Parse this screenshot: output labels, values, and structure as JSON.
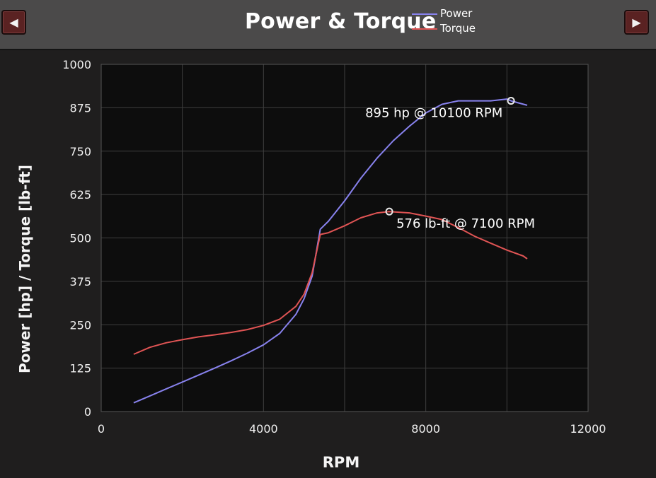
{
  "header": {
    "prev_icon": "◀",
    "next_icon": "▶"
  },
  "colors": {
    "power": "#8882ee",
    "torque": "#e05454",
    "plot_bg": "#0d0d0d",
    "grid": "#3e3e3e"
  },
  "chart_data": {
    "type": "line",
    "title": "Power & Torque",
    "xlabel": "RPM",
    "ylabel": "Power [hp] / Torque [lb-ft]",
    "xlim": [
      0,
      12000
    ],
    "ylim": [
      0,
      1000
    ],
    "xticks": [
      0,
      4000,
      8000,
      12000
    ],
    "xtick_labels": [
      "0",
      "4000",
      "8000",
      "12000"
    ],
    "yticks": [
      0,
      125,
      250,
      375,
      500,
      625,
      750,
      875,
      1000
    ],
    "ytick_labels": [
      "0",
      "125",
      "250",
      "375",
      "500",
      "625",
      "750",
      "875",
      "1000"
    ],
    "grid": true,
    "legend": "top (next to title)",
    "series": [
      {
        "name": "Power",
        "x": [
          800,
          1200,
          1600,
          2000,
          2400,
          2800,
          3200,
          3600,
          4000,
          4400,
          4800,
          5000,
          5200,
          5400,
          5600,
          6000,
          6400,
          6800,
          7200,
          7600,
          8000,
          8400,
          8800,
          9200,
          9600,
          10000,
          10100,
          10500
        ],
        "y": [
          25,
          45,
          65,
          85,
          105,
          125,
          146,
          168,
          192,
          225,
          280,
          325,
          390,
          525,
          548,
          607,
          672,
          730,
          780,
          822,
          860,
          885,
          895,
          895,
          895,
          900,
          895,
          882
        ]
      },
      {
        "name": "Torque",
        "x": [
          800,
          1200,
          1600,
          2000,
          2400,
          2800,
          3200,
          3600,
          4000,
          4400,
          4800,
          5000,
          5200,
          5400,
          5600,
          6000,
          6400,
          6800,
          7100,
          7600,
          8000,
          8400,
          8800,
          9200,
          9600,
          10000,
          10400,
          10500
        ],
        "y": [
          165,
          185,
          198,
          207,
          215,
          221,
          228,
          236,
          248,
          266,
          303,
          338,
          400,
          510,
          515,
          535,
          558,
          572,
          576,
          572,
          563,
          553,
          530,
          505,
          485,
          465,
          448,
          440
        ]
      }
    ],
    "annotations": [
      {
        "text": "895 hp @ 10100 RPM",
        "x": 10100,
        "y": 895,
        "series": "Power"
      },
      {
        "text": "576 lb-ft @ 7100 RPM",
        "x": 7100,
        "y": 576,
        "series": "Torque"
      }
    ]
  }
}
